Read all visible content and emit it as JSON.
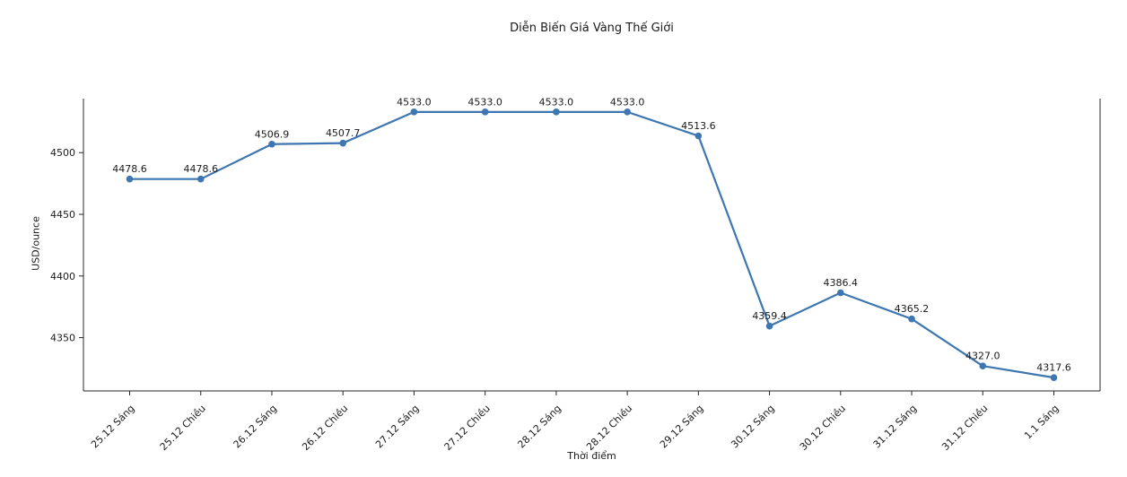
{
  "chart_data": {
    "type": "line",
    "title": "Diễn Biến Giá Vàng Thế Giới",
    "xlabel": "Thời điểm",
    "ylabel": "USD/ounce",
    "categories": [
      "25.12 Sáng",
      "25.12 Chiều",
      "26.12 Sáng",
      "26.12 Chiều",
      "27.12 Sáng",
      "27.12 Chiều",
      "28.12 Sáng",
      "28.12 Chiều",
      "29.12 Sáng",
      "30.12 Sáng",
      "30.12 Chiều",
      "31.12 Sáng",
      "31.12 Chiều",
      "1.1 Sáng"
    ],
    "values": [
      4478.6,
      4478.6,
      4506.9,
      4507.7,
      4533.0,
      4533.0,
      4533.0,
      4533.0,
      4513.6,
      4359.4,
      4386.4,
      4365.2,
      4327.0,
      4317.6
    ],
    "value_labels": [
      "4478.6",
      "4478.6",
      "4506.9",
      "4507.7",
      "4533.0",
      "4533.0",
      "4533.0",
      "4533.0",
      "4513.6",
      "4359.4",
      "4386.4",
      "4365.2",
      "4327.0",
      "4317.6"
    ],
    "yticks": [
      4350,
      4400,
      4450,
      4500
    ],
    "ylim": [
      4306.8,
      4543.8
    ],
    "grid": false,
    "legend": null,
    "line_color": "#3d76b0",
    "marker_color": "#3d76b0",
    "axis_color": "#262626",
    "x_tick_rotation_deg": 45
  }
}
